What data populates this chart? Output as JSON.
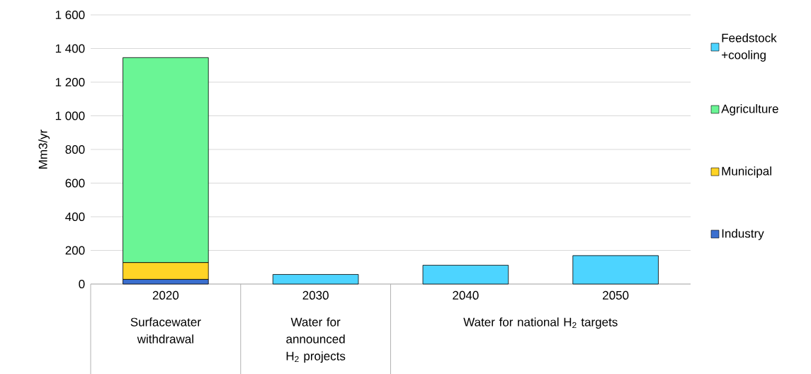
{
  "chart_data": {
    "type": "bar",
    "stacked": true,
    "ylabel": "Mm3/yr",
    "categories": [
      "2020",
      "2030",
      "2040",
      "2050"
    ],
    "series": [
      {
        "name": "Industry",
        "color": "#3b6fcf",
        "values": [
          28,
          null,
          null,
          null
        ]
      },
      {
        "name": "Municipal",
        "color": "#ffd426",
        "values": [
          100,
          null,
          null,
          null
        ]
      },
      {
        "name": "Agriculture",
        "color": "#6af595",
        "values": [
          1218,
          null,
          null,
          null
        ]
      },
      {
        "name": "Feedstock +cooling",
        "color": "#4dd4ff",
        "values": [
          null,
          57,
          112,
          169
        ]
      }
    ],
    "annotations": [
      "Surfacewater withdrawal",
      "Water for announced H$_{2}$ projects",
      "Water for national H$_{2}$ targets"
    ],
    "ylim": [
      0,
      1600
    ],
    "yticks": [
      0,
      200,
      400,
      600,
      800,
      {
        "value": 1000,
        "label": "1 000"
      },
      {
        "value": 1200,
        "label": "1 200"
      },
      {
        "value": 1400,
        "label": "1 400"
      },
      {
        "value": 1600,
        "label": "1 600"
      }
    ],
    "grid": "y",
    "legend": "right"
  }
}
